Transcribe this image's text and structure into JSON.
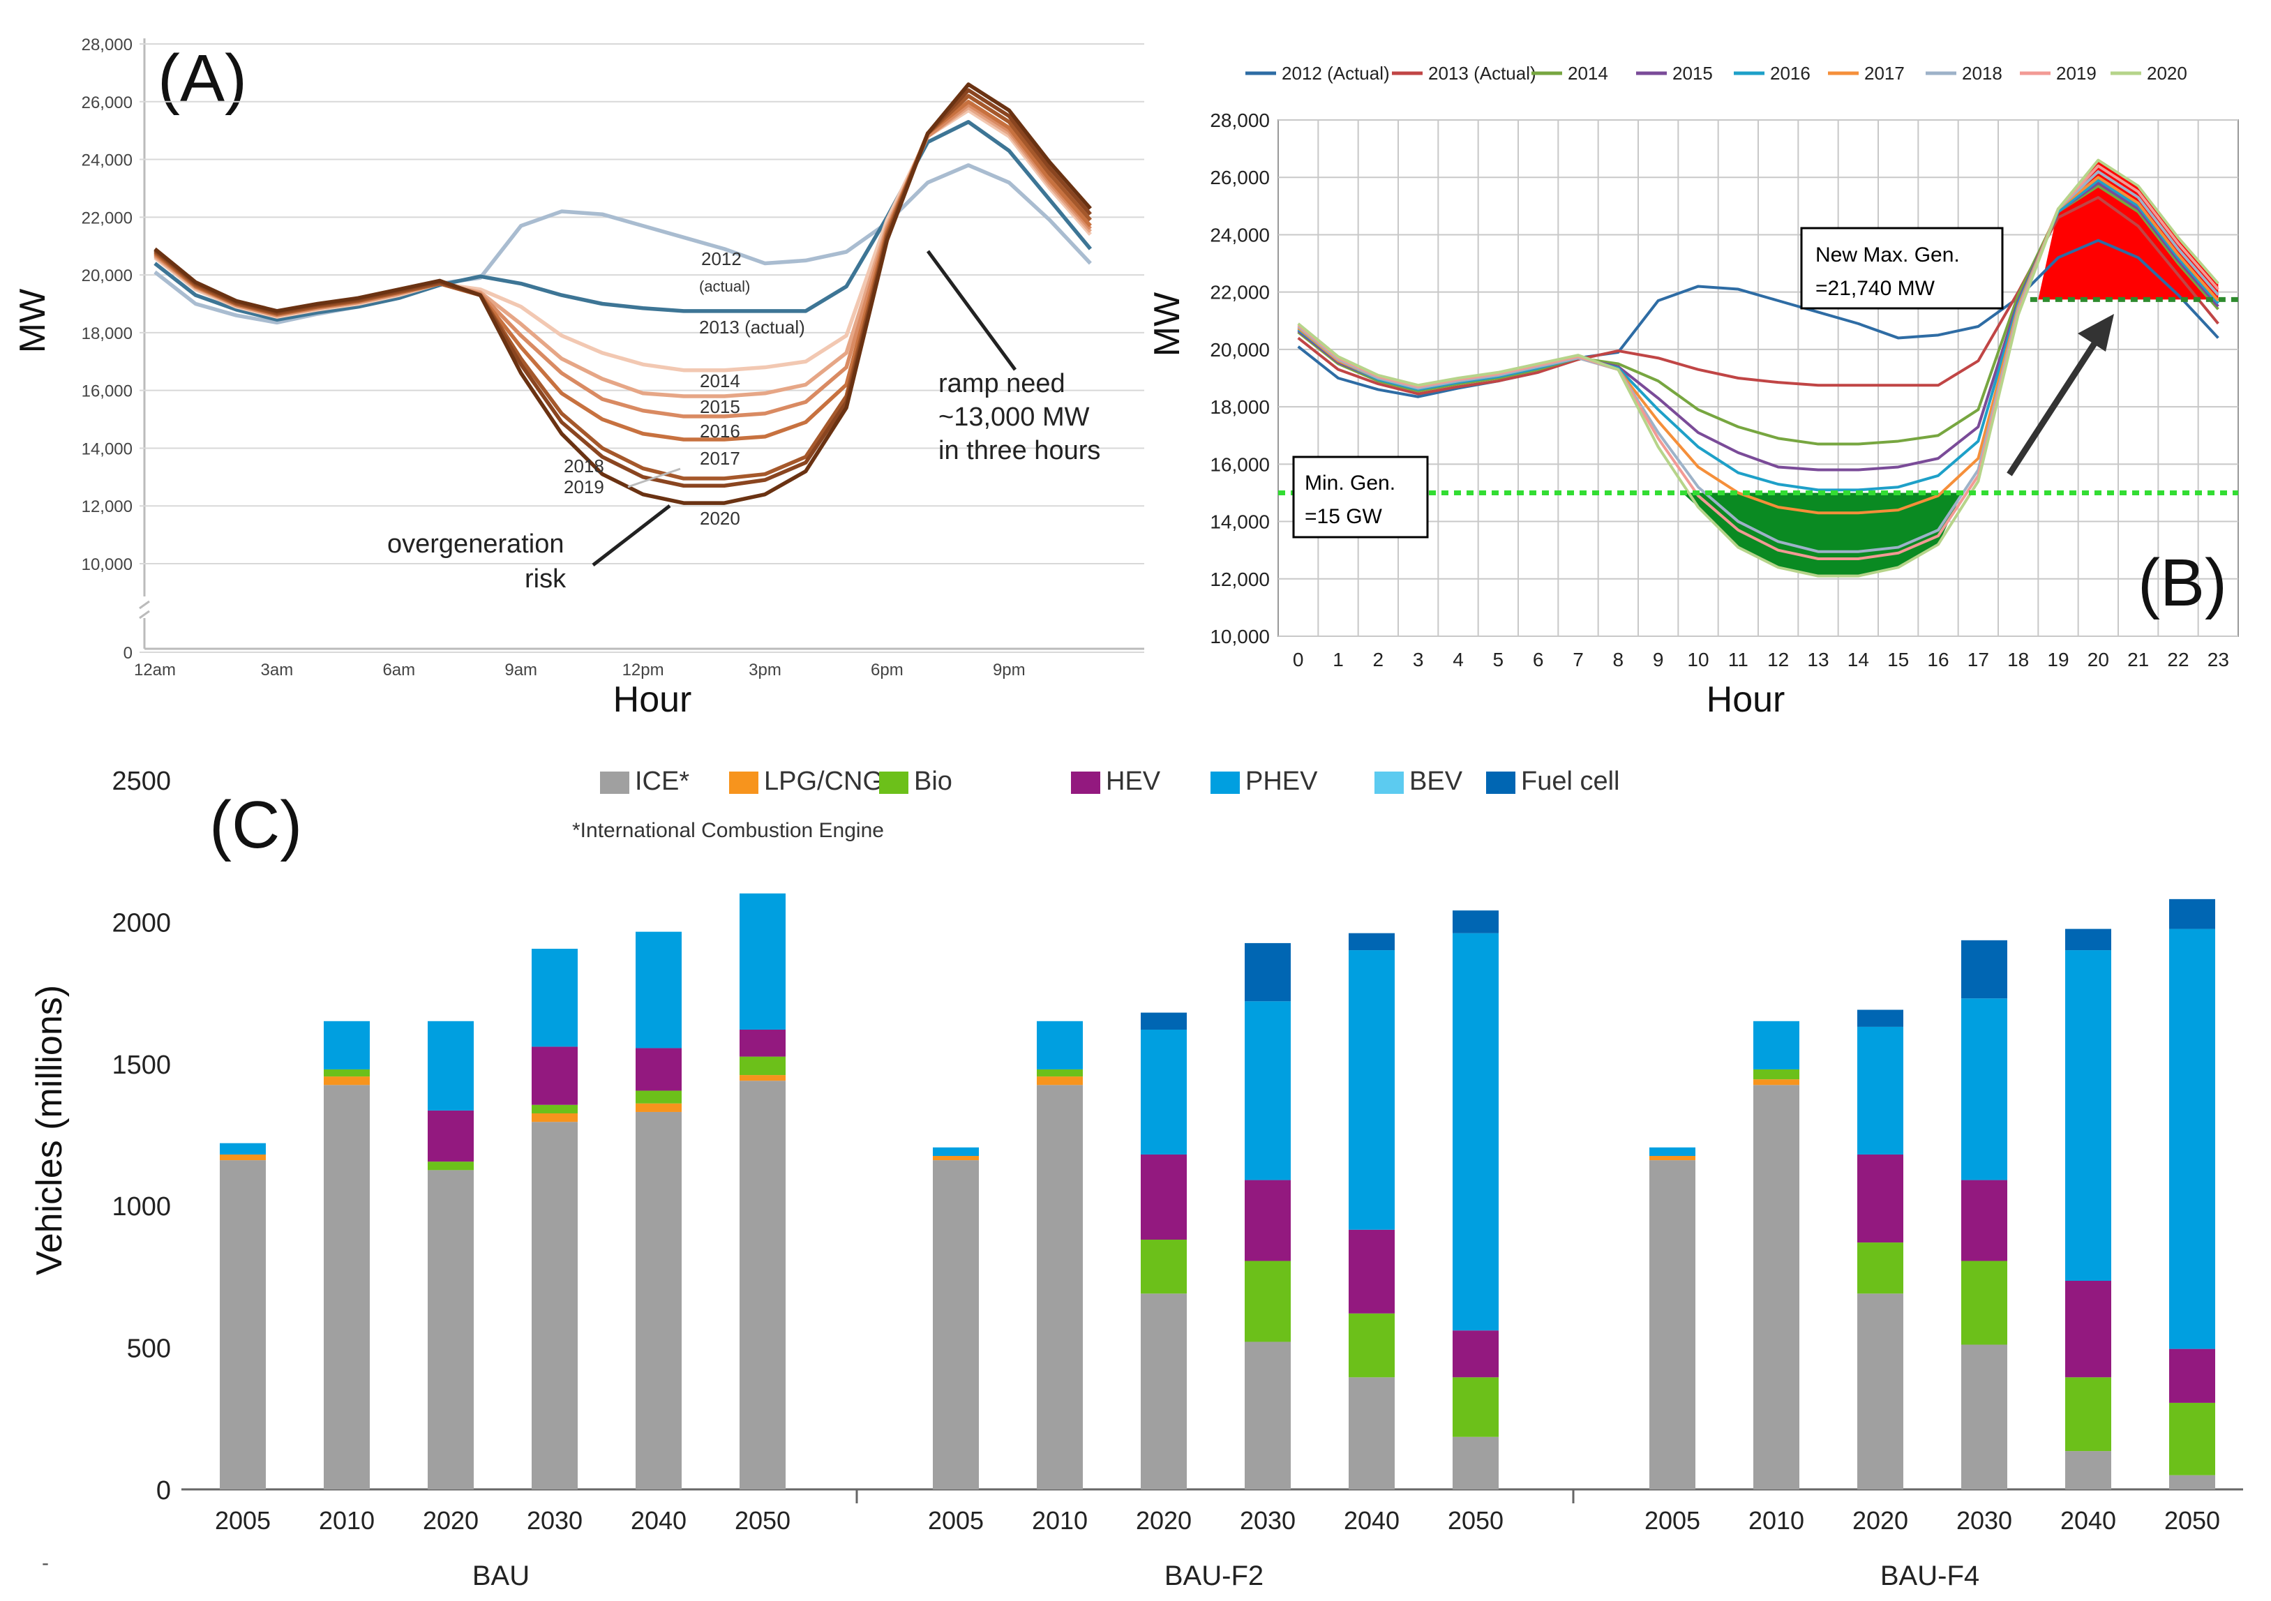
{
  "colors": {
    "duck": {
      "2012": "#a9bcd0",
      "2013": "#3d7595",
      "2014": "#f2c8b2",
      "2015": "#e6a686",
      "2016": "#d98a62",
      "2017": "#c7713f",
      "2018": "#a5582b",
      "2019": "#8a4520",
      "2020": "#6a3212"
    },
    "b": {
      "2012": "#2e6ca4",
      "2013": "#c04545",
      "2014": "#77a640",
      "2015": "#7a4b98",
      "2016": "#1ea0c8",
      "2017": "#f58f3a",
      "2018": "#9db2c8",
      "2019": "#f29a94",
      "2020": "#b6d48a"
    },
    "vehicles": {
      "ICE": "#a0a0a0",
      "LPG/CNG": "#f7941d",
      "Bio": "#6cc01a",
      "HEV": "#93197f",
      "PHEV": "#009fe0",
      "BEV": "#5ccbf0",
      "Fuel cell": "#0066b3"
    },
    "minGen": "#33dd33",
    "maxGen": "#2e8b2e",
    "overgen": "#0a8a22",
    "ramp": "#ff0000"
  },
  "chart_data": [
    {
      "type": "line",
      "panel": "(A)",
      "xlabel": "Hour",
      "ylabel": "MW",
      "ylim": [
        0,
        28000
      ],
      "y_ticks": [
        "0",
        "10,000",
        "12,000",
        "14,000",
        "16,000",
        "18,000",
        "20,000",
        "22,000",
        "24,000",
        "26,000",
        "28,000"
      ],
      "x_ticks": [
        "12am",
        "3am",
        "6am",
        "9am",
        "12pm",
        "3pm",
        "6pm",
        "9pm"
      ],
      "series": [
        {
          "name": "2012",
          "values": [
            20100,
            19000,
            18600,
            18350,
            18650,
            18900,
            19200,
            19700,
            19900,
            21700,
            22200,
            22100,
            21700,
            21300,
            20900,
            20400,
            20500,
            20800,
            21800,
            23200,
            23800,
            23200,
            21900,
            20400
          ]
        },
        {
          "name": "2013",
          "values": [
            20400,
            19300,
            18800,
            18450,
            18700,
            18900,
            19200,
            19650,
            19950,
            19700,
            19300,
            19000,
            18850,
            18750,
            18750,
            18750,
            18750,
            19600,
            22000,
            24600,
            25300,
            24300,
            22600,
            20900
          ]
        },
        {
          "name": "2014",
          "values": [
            20600,
            19500,
            18900,
            18550,
            18800,
            19000,
            19300,
            19700,
            19500,
            18900,
            17900,
            17300,
            16900,
            16700,
            16700,
            16800,
            17000,
            17900,
            21900,
            24800,
            25700,
            24800,
            23000,
            21400
          ]
        },
        {
          "name": "2015",
          "values": [
            20650,
            19550,
            18950,
            18600,
            18850,
            19050,
            19350,
            19700,
            19400,
            18300,
            17100,
            16400,
            15900,
            15800,
            15800,
            15900,
            16200,
            17300,
            21700,
            24800,
            25800,
            24900,
            23100,
            21500
          ]
        },
        {
          "name": "2016",
          "values": [
            20700,
            19600,
            18950,
            18600,
            18850,
            19050,
            19350,
            19700,
            19350,
            17900,
            16600,
            15700,
            15300,
            15100,
            15100,
            15200,
            15600,
            16800,
            21600,
            24800,
            25900,
            25000,
            23200,
            21600
          ]
        },
        {
          "name": "2017",
          "values": [
            20750,
            19600,
            19000,
            18650,
            18900,
            19100,
            19400,
            19700,
            19300,
            17500,
            15900,
            15000,
            14500,
            14300,
            14300,
            14400,
            14900,
            16200,
            21500,
            24900,
            26000,
            25100,
            23300,
            21700
          ]
        },
        {
          "name": "2018",
          "values": [
            20800,
            19650,
            19000,
            18650,
            18900,
            19100,
            19400,
            19700,
            19300,
            17100,
            15200,
            14000,
            13300,
            12950,
            12950,
            13100,
            13700,
            15800,
            21400,
            24900,
            26200,
            25300,
            23500,
            21900
          ]
        },
        {
          "name": "2019",
          "values": [
            20850,
            19700,
            19050,
            18700,
            18950,
            19150,
            19450,
            19750,
            19300,
            16900,
            14900,
            13700,
            13000,
            12700,
            12700,
            12900,
            13500,
            15600,
            21300,
            24900,
            26400,
            25500,
            23700,
            22100
          ]
        },
        {
          "name": "2020",
          "values": [
            20900,
            19750,
            19100,
            18750,
            19000,
            19200,
            19500,
            19800,
            19300,
            16600,
            14500,
            13100,
            12400,
            12100,
            12100,
            12400,
            13200,
            15400,
            21200,
            24900,
            26600,
            25700,
            23900,
            22300
          ]
        }
      ],
      "labels": {
        "2012": "2012",
        "2012b": "(actual)",
        "2013": "2013 (actual)",
        "2014": "2014",
        "2015": "2015",
        "2016": "2016",
        "2017": "2017",
        "2018": "2018",
        "2019": "2019",
        "2020": "2020"
      },
      "annotations": {
        "title": "(A)",
        "ramp1": "ramp need",
        "ramp2": "~13,000 MW",
        "ramp3": "in three hours",
        "over1": "overgeneration",
        "over2": "risk"
      }
    },
    {
      "type": "line",
      "panel": "(B)",
      "xlabel": "Hour",
      "ylabel": "MW",
      "ylim": [
        10000,
        28000
      ],
      "categories": [
        0,
        1,
        2,
        3,
        4,
        5,
        6,
        7,
        8,
        9,
        10,
        11,
        12,
        13,
        14,
        15,
        16,
        17,
        18,
        19,
        20,
        21,
        22,
        23
      ],
      "y_ticks": [
        "10,000",
        "12,000",
        "14,000",
        "16,000",
        "18,000",
        "20,000",
        "22,000",
        "24,000",
        "26,000",
        "28,000"
      ],
      "legend": [
        "2012 (Actual)",
        "2013 (Actual)",
        "2014",
        "2015",
        "2016",
        "2017",
        "2018",
        "2019",
        "2020"
      ],
      "min_gen": 15000,
      "max_gen": 21740,
      "annotations": {
        "title": "(B)",
        "max1": "New Max. Gen.",
        "max2": "=21,740 MW",
        "min1": "Min. Gen.",
        "min2": "=15 GW"
      }
    },
    {
      "type": "bar",
      "panel": "(C)",
      "stacked": true,
      "ylabel": "Vehicles (millions)",
      "ylim": [
        0,
        2500
      ],
      "y_ticks": [
        "0",
        "500",
        "1000",
        "1500",
        "2000",
        "2500"
      ],
      "legend": [
        "ICE*",
        "LPG/CNG",
        "Bio",
        "HEV",
        "PHEV",
        "BEV",
        "Fuel cell"
      ],
      "footnote": "*International Combustion Engine",
      "components": [
        "ICE",
        "LPG/CNG",
        "Bio",
        "HEV",
        "PHEV",
        "BEV",
        "Fuel cell"
      ],
      "groups": [
        {
          "name": "BAU",
          "bars": [
            {
              "year": "2005",
              "values": [
                1160,
                20,
                0,
                0,
                40,
                0,
                0
              ]
            },
            {
              "year": "2010",
              "values": [
                1425,
                30,
                25,
                0,
                170,
                0,
                0
              ]
            },
            {
              "year": "2020",
              "values": [
                1125,
                0,
                30,
                180,
                315,
                0,
                0
              ]
            },
            {
              "year": "2030",
              "values": [
                1295,
                30,
                30,
                205,
                345,
                0,
                0
              ]
            },
            {
              "year": "2040",
              "values": [
                1330,
                30,
                45,
                150,
                410,
                0,
                0
              ]
            },
            {
              "year": "2050",
              "values": [
                1440,
                20,
                65,
                95,
                480,
                0,
                0
              ]
            }
          ]
        },
        {
          "name": "BAU-F2",
          "bars": [
            {
              "year": "2005",
              "values": [
                1160,
                15,
                0,
                0,
                30,
                0,
                0
              ]
            },
            {
              "year": "2010",
              "values": [
                1425,
                30,
                25,
                0,
                170,
                0,
                0
              ]
            },
            {
              "year": "2020",
              "values": [
                690,
                0,
                190,
                300,
                440,
                0,
                60
              ]
            },
            {
              "year": "2030",
              "values": [
                520,
                0,
                285,
                285,
                630,
                0,
                205
              ]
            },
            {
              "year": "2040",
              "values": [
                395,
                0,
                225,
                295,
                985,
                0,
                60
              ]
            },
            {
              "year": "2050",
              "values": [
                185,
                0,
                210,
                165,
                1400,
                0,
                80
              ]
            }
          ]
        },
        {
          "name": "BAU-F4",
          "bars": [
            {
              "year": "2005",
              "values": [
                1160,
                15,
                0,
                0,
                30,
                0,
                0
              ]
            },
            {
              "year": "2010",
              "values": [
                1425,
                20,
                35,
                0,
                170,
                0,
                0
              ]
            },
            {
              "year": "2020",
              "values": [
                690,
                0,
                180,
                310,
                450,
                0,
                60
              ]
            },
            {
              "year": "2030",
              "values": [
                510,
                0,
                295,
                285,
                640,
                0,
                205
              ]
            },
            {
              "year": "2040",
              "values": [
                135,
                0,
                260,
                340,
                1165,
                0,
                75
              ]
            },
            {
              "year": "2050",
              "values": [
                50,
                0,
                255,
                190,
                1480,
                0,
                105
              ]
            }
          ]
        }
      ],
      "annotations": {
        "title": "(C)"
      }
    }
  ]
}
